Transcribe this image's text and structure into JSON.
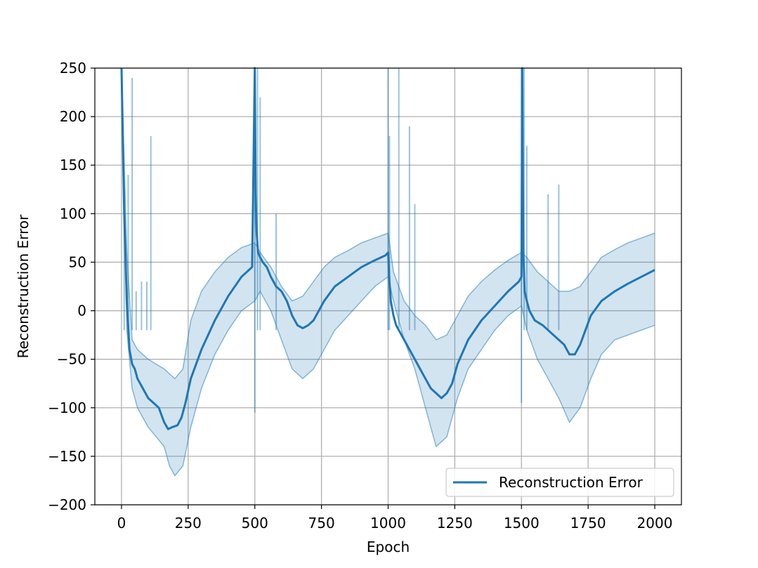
{
  "chart_data": {
    "type": "line",
    "title": "",
    "xlabel": "Epoch",
    "ylabel": "Reconstruction Error",
    "xlim": [
      -100,
      2100
    ],
    "ylim": [
      -200,
      250
    ],
    "xticks": [
      0,
      250,
      500,
      750,
      1000,
      1250,
      1500,
      1750,
      2000
    ],
    "yticks": [
      -200,
      -150,
      -100,
      -50,
      0,
      50,
      100,
      150,
      200,
      250
    ],
    "xtick_labels": [
      "0",
      "250",
      "500",
      "750",
      "1000",
      "1250",
      "1500",
      "1750",
      "2000"
    ],
    "ytick_labels": [
      "−200",
      "−150",
      "−100",
      "−50",
      "0",
      "50",
      "100",
      "150",
      "200",
      "250"
    ],
    "grid": true,
    "legend": {
      "position": "lower-right",
      "entries": [
        "Reconstruction Error"
      ]
    },
    "series": [
      {
        "name": "Reconstruction Error",
        "color": "#1f77b4",
        "x": [
          0,
          10,
          20,
          30,
          40,
          50,
          60,
          70,
          80,
          90,
          100,
          120,
          140,
          160,
          175,
          190,
          210,
          225,
          240,
          260,
          300,
          350,
          400,
          450,
          490,
          500,
          503,
          507,
          512,
          520,
          530,
          545,
          560,
          580,
          600,
          620,
          640,
          660,
          680,
          700,
          720,
          740,
          760,
          800,
          850,
          900,
          950,
          990,
          1000,
          1005,
          1010,
          1020,
          1030,
          1040,
          1060,
          1080,
          1100,
          1120,
          1140,
          1160,
          1180,
          1200,
          1220,
          1240,
          1260,
          1300,
          1350,
          1400,
          1450,
          1490,
          1500,
          1503,
          1507,
          1512,
          1520,
          1530,
          1550,
          1580,
          1600,
          1620,
          1640,
          1660,
          1680,
          1700,
          1720,
          1740,
          1760,
          1800,
          1850,
          1900,
          1950,
          2000
        ],
        "y": [
          250,
          100,
          10,
          -40,
          -55,
          -60,
          -70,
          -75,
          -80,
          -85,
          -90,
          -95,
          -100,
          -115,
          -122,
          -120,
          -118,
          -110,
          -95,
          -70,
          -40,
          -10,
          15,
          35,
          45,
          250,
          120,
          80,
          60,
          55,
          50,
          45,
          35,
          25,
          20,
          10,
          -5,
          -15,
          -18,
          -15,
          -10,
          0,
          10,
          25,
          35,
          45,
          52,
          57,
          60,
          30,
          10,
          -5,
          -15,
          -20,
          -30,
          -40,
          -50,
          -60,
          -70,
          -80,
          -85,
          -90,
          -85,
          -75,
          -55,
          -30,
          -10,
          5,
          20,
          30,
          35,
          250,
          60,
          20,
          10,
          0,
          -10,
          -15,
          -20,
          -25,
          -30,
          -35,
          -45,
          -45,
          -35,
          -20,
          -5,
          10,
          20,
          28,
          35,
          42
        ]
      }
    ],
    "band": {
      "x": [
        0,
        20,
        40,
        60,
        80,
        100,
        130,
        160,
        180,
        200,
        230,
        260,
        300,
        350,
        400,
        450,
        500,
        520,
        560,
        600,
        640,
        680,
        720,
        760,
        800,
        850,
        900,
        950,
        1000,
        1020,
        1060,
        1100,
        1140,
        1180,
        1220,
        1260,
        1300,
        1350,
        1400,
        1450,
        1500,
        1520,
        1560,
        1600,
        1640,
        1680,
        1720,
        1760,
        1800,
        1850,
        1900,
        1950,
        2000
      ],
      "upper": [
        250,
        60,
        -30,
        -40,
        -45,
        -50,
        -55,
        -60,
        -65,
        -70,
        -60,
        -10,
        20,
        40,
        55,
        65,
        70,
        60,
        45,
        25,
        10,
        15,
        30,
        45,
        55,
        62,
        70,
        75,
        80,
        40,
        10,
        -5,
        -15,
        -30,
        -25,
        -5,
        15,
        30,
        42,
        52,
        60,
        55,
        40,
        30,
        20,
        20,
        25,
        40,
        55,
        63,
        70,
        75,
        80
      ],
      "lower": [
        250,
        -20,
        -80,
        -100,
        -110,
        -120,
        -130,
        -140,
        -160,
        -170,
        -160,
        -120,
        -80,
        -45,
        -20,
        0,
        10,
        20,
        0,
        -30,
        -60,
        -70,
        -60,
        -40,
        -20,
        -5,
        10,
        25,
        35,
        10,
        -30,
        -60,
        -100,
        -140,
        -130,
        -90,
        -60,
        -40,
        -20,
        -5,
        5,
        -20,
        -50,
        -70,
        -90,
        -115,
        -100,
        -70,
        -45,
        -30,
        -25,
        -20,
        -15
      ]
    },
    "spikes": [
      {
        "x": 10,
        "top": 130
      },
      {
        "x": 25,
        "top": 140
      },
      {
        "x": 40,
        "top": 240
      },
      {
        "x": 55,
        "top": 20
      },
      {
        "x": 75,
        "top": 30
      },
      {
        "x": 95,
        "top": 30
      },
      {
        "x": 110,
        "top": 180
      },
      {
        "x": 500,
        "top": 250,
        "bottom": -105
      },
      {
        "x": 510,
        "top": 250
      },
      {
        "x": 520,
        "top": 220
      },
      {
        "x": 580,
        "top": 100
      },
      {
        "x": 1000,
        "top": 250
      },
      {
        "x": 1005,
        "top": 180
      },
      {
        "x": 1040,
        "top": 250
      },
      {
        "x": 1080,
        "top": 190
      },
      {
        "x": 1100,
        "top": 110
      },
      {
        "x": 1500,
        "top": 250,
        "bottom": -95
      },
      {
        "x": 1510,
        "top": 250
      },
      {
        "x": 1520,
        "top": 170
      },
      {
        "x": 1600,
        "top": 120
      },
      {
        "x": 1640,
        "top": 130
      }
    ]
  }
}
